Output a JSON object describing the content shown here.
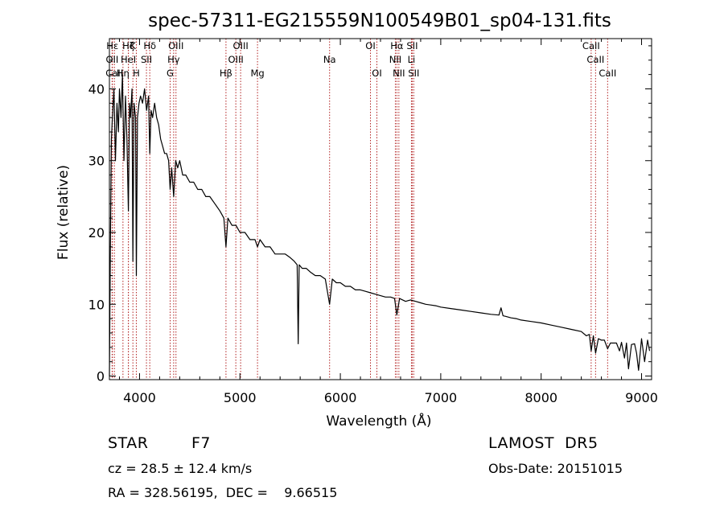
{
  "chart_data": {
    "type": "line",
    "title": "spec-57311-EG215559N100549B01_sp04-131.fits",
    "xlabel": "Wavelength (Å)",
    "ylabel": "Flux (relative)",
    "xlim": [
      3700,
      9100
    ],
    "ylim": [
      -0.5,
      47
    ],
    "xticks": [
      4000,
      5000,
      6000,
      7000,
      8000,
      9000
    ],
    "yticks": [
      0,
      10,
      20,
      30,
      40
    ],
    "grid": false,
    "legend": "none",
    "colors": {
      "spectrum": "#000000",
      "lines": "#b22222"
    },
    "spectral_lines": [
      {
        "label": "Hε",
        "x": 3730,
        "row": 0
      },
      {
        "label": "OII",
        "x": 3727,
        "row": 1
      },
      {
        "label": "CaII",
        "x": 3750,
        "row": 2
      },
      {
        "label": "Hζ",
        "x": 3889,
        "row": 0
      },
      {
        "label": "HeI",
        "x": 3889,
        "row": 1
      },
      {
        "label": "Hη",
        "x": 3835,
        "row": 2
      },
      {
        "label": "K",
        "x": 3934,
        "row": 0
      },
      {
        "label": "H",
        "x": 3968,
        "row": 2
      },
      {
        "label": "Hδ",
        "x": 4102,
        "row": 0
      },
      {
        "label": "SII",
        "x": 4069,
        "row": 1
      },
      {
        "label": "OIII",
        "x": 4363,
        "row": 0
      },
      {
        "label": "Hγ",
        "x": 4340,
        "row": 1
      },
      {
        "label": "G",
        "x": 4305,
        "row": 2
      },
      {
        "label": "Hβ",
        "x": 4861,
        "row": 2
      },
      {
        "label": "OIII",
        "x": 5007,
        "row": 0
      },
      {
        "label": "OIII",
        "x": 4959,
        "row": 1
      },
      {
        "label": "Mg",
        "x": 5175,
        "row": 2
      },
      {
        "label": "Na",
        "x": 5893,
        "row": 1
      },
      {
        "label": "OI",
        "x": 6300,
        "row": 0
      },
      {
        "label": "OI",
        "x": 6364,
        "row": 2
      },
      {
        "label": "Hα",
        "x": 6563,
        "row": 0
      },
      {
        "label": "NII",
        "x": 6548,
        "row": 1
      },
      {
        "label": "NII",
        "x": 6583,
        "row": 2
      },
      {
        "label": "SII",
        "x": 6716,
        "row": 0
      },
      {
        "label": "Li",
        "x": 6708,
        "row": 1
      },
      {
        "label": "SII",
        "x": 6731,
        "row": 2
      },
      {
        "label": "CaII",
        "x": 8498,
        "row": 0
      },
      {
        "label": "CaII",
        "x": 8542,
        "row": 1
      },
      {
        "label": "CaII",
        "x": 8662,
        "row": 2
      }
    ],
    "series": [
      {
        "x": [
          3700,
          3710,
          3720,
          3730,
          3745,
          3760,
          3775,
          3790,
          3800,
          3815,
          3830,
          3845,
          3860,
          3875,
          3889,
          3900,
          3910,
          3925,
          3934,
          3945,
          3960,
          3968,
          3980,
          3995,
          4010,
          4030,
          4050,
          4070,
          4090,
          4102,
          4115,
          4130,
          4150,
          4170,
          4190,
          4210,
          4230,
          4250,
          4270,
          4290,
          4305,
          4320,
          4340,
          4360,
          4380,
          4400,
          4430,
          4460,
          4500,
          4540,
          4580,
          4620,
          4660,
          4700,
          4750,
          4800,
          4840,
          4861,
          4880,
          4920,
          4960,
          5000,
          5050,
          5100,
          5150,
          5175,
          5200,
          5250,
          5300,
          5350,
          5400,
          5450,
          5500,
          5540,
          5570,
          5580,
          5590,
          5620,
          5660,
          5700,
          5750,
          5800,
          5850,
          5893,
          5920,
          5960,
          6000,
          6050,
          6100,
          6150,
          6200,
          6250,
          6300,
          6350,
          6400,
          6450,
          6500,
          6540,
          6563,
          6590,
          6620,
          6650,
          6700,
          6750,
          6800,
          6850,
          6900,
          6950,
          7000,
          7100,
          7200,
          7300,
          7400,
          7500,
          7580,
          7600,
          7620,
          7650,
          7700,
          7750,
          7800,
          7900,
          8000,
          8100,
          8200,
          8300,
          8400,
          8450,
          8480,
          8498,
          8520,
          8542,
          8570,
          8600,
          8630,
          8662,
          8690,
          8720,
          8750,
          8780,
          8800,
          8830,
          8850,
          8870,
          8900,
          8930,
          8950,
          8970,
          9000,
          9030,
          9060,
          9080
        ],
        "y": [
          0,
          18,
          33,
          36,
          40,
          30,
          38,
          34,
          40,
          36,
          42,
          30,
          39,
          33,
          23,
          38,
          36,
          40,
          16,
          38,
          36,
          14,
          36,
          38,
          39,
          38,
          40,
          37,
          39,
          31,
          37,
          36,
          38,
          36,
          35,
          33,
          32,
          31,
          31,
          30,
          26,
          29,
          25,
          30,
          29,
          30,
          28,
          28,
          27,
          27,
          26,
          26,
          25,
          25,
          24,
          23,
          22,
          18,
          22,
          21,
          21,
          20,
          20,
          19,
          19,
          18,
          19,
          18,
          18,
          17,
          17,
          17,
          16.5,
          16,
          15.5,
          4.5,
          15.5,
          15,
          15,
          14.5,
          14,
          14,
          13.5,
          10,
          13.5,
          13,
          13,
          12.5,
          12.5,
          12,
          12,
          11.8,
          11.6,
          11.4,
          11.2,
          11,
          11,
          10.8,
          8.5,
          10.8,
          10.6,
          10.4,
          10.6,
          10.4,
          10.2,
          10,
          9.9,
          9.8,
          9.6,
          9.4,
          9.2,
          9,
          8.8,
          8.6,
          8.5,
          9.5,
          8.4,
          8.3,
          8.1,
          8,
          7.8,
          7.6,
          7.4,
          7.1,
          6.8,
          6.5,
          6.2,
          5.6,
          5.8,
          3.5,
          5.6,
          3.2,
          5.2,
          5,
          5,
          3.8,
          4.6,
          4.6,
          4.6,
          3.5,
          4.7,
          2.5,
          4.6,
          1,
          4.4,
          4.5,
          3.2,
          0.8,
          5.2,
          2,
          5,
          3.5
        ]
      }
    ]
  },
  "footer": {
    "object_type": "STAR",
    "subclass": "F7",
    "survey": "LAMOST  DR5",
    "cz": "cz = 28.5 ± 12.4 km/s",
    "obs_date": "Obs-Date: 20151015",
    "coords": "RA = 328.56195,  DEC =    9.66515"
  }
}
